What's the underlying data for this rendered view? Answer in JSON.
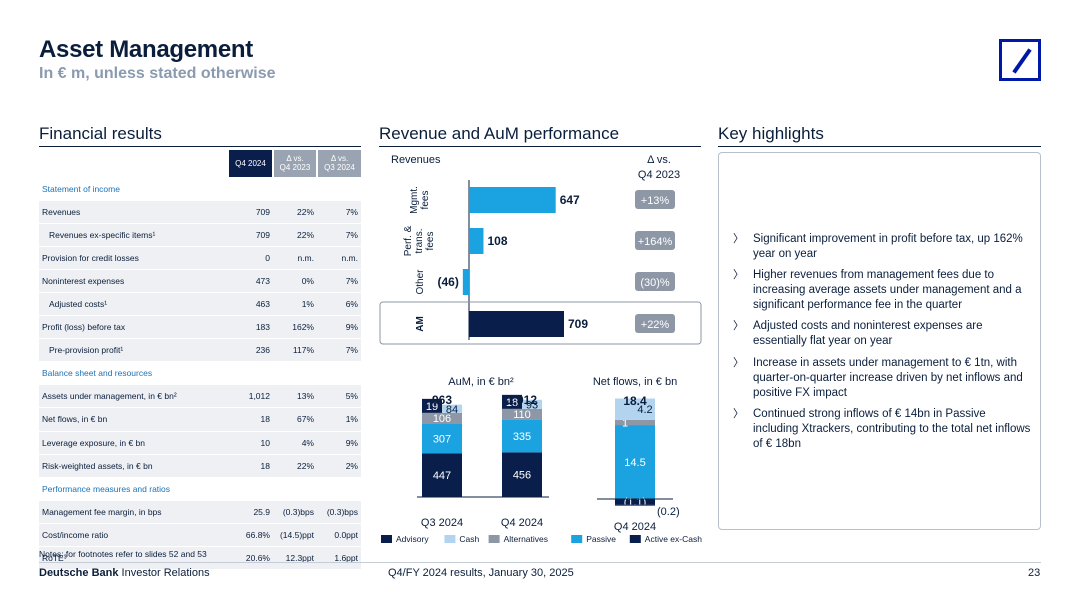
{
  "header": {
    "title": "Asset Management",
    "subtitle": "In € m, unless stated otherwise"
  },
  "sections": {
    "financial": "Financial results",
    "revenue": "Revenue and AuM performance",
    "highlights": "Key highlights"
  },
  "table": {
    "columns": [
      "Q4 2024",
      "Δ vs.\nQ4 2023",
      "Δ vs.\nQ3 2024"
    ],
    "rows": [
      {
        "type": "section",
        "label": "Statement of income"
      },
      {
        "type": "row",
        "label": "Revenues",
        "values": [
          "709",
          "22%",
          "7%"
        ]
      },
      {
        "type": "row",
        "label": "Revenues ex-specific items¹",
        "indent": true,
        "values": [
          "709",
          "22%",
          "7%"
        ]
      },
      {
        "type": "row",
        "label": "Provision for credit losses",
        "values": [
          "0",
          "n.m.",
          "n.m."
        ]
      },
      {
        "type": "row",
        "label": "Noninterest expenses",
        "values": [
          "473",
          "0%",
          "7%"
        ]
      },
      {
        "type": "row",
        "label": "Adjusted costs¹",
        "indent": true,
        "values": [
          "463",
          "1%",
          "6%"
        ]
      },
      {
        "type": "row",
        "label": "Profit (loss) before tax",
        "values": [
          "183",
          "162%",
          "9%"
        ]
      },
      {
        "type": "row",
        "label": "Pre-provision profit¹",
        "indent": true,
        "values": [
          "236",
          "117%",
          "7%"
        ]
      },
      {
        "type": "section",
        "label": "Balance sheet and resources"
      },
      {
        "type": "row",
        "label": "Assets under management, in € bn²",
        "values": [
          "1,012",
          "13%",
          "5%"
        ]
      },
      {
        "type": "row",
        "label": "Net flows, in € bn",
        "values": [
          "18",
          "67%",
          "1%"
        ]
      },
      {
        "type": "row",
        "label": "Leverage exposure, in € bn",
        "values": [
          "10",
          "4%",
          "9%"
        ]
      },
      {
        "type": "row",
        "label": "Risk-weighted assets, in € bn",
        "values": [
          "18",
          "22%",
          "2%"
        ]
      },
      {
        "type": "section",
        "label": "Performance measures and ratios"
      },
      {
        "type": "row",
        "label": "Management fee margin, in bps",
        "values": [
          "25.9",
          "(0.3)bps",
          "(0.3)bps"
        ]
      },
      {
        "type": "row",
        "label": "Cost/income ratio",
        "values": [
          "66.8%",
          "(14.5)ppt",
          "0.0ppt"
        ]
      },
      {
        "type": "row",
        "label": "RoTE³",
        "values": [
          "20.6%",
          "12.3ppt",
          "1.6ppt"
        ]
      }
    ]
  },
  "notes": "Notes: for footnotes refer to slides 52 and 53",
  "revenue_chart": {
    "revenues_label": "Revenues",
    "delta_header": "Δ vs.\nQ4 2023",
    "rows": [
      {
        "label": "Mgmt.\nfees",
        "value": 647,
        "value_text": "647",
        "delta": "+13%"
      },
      {
        "label": "Perf. &\ntrans.\nfees",
        "value": 108,
        "value_text": "108",
        "delta": "+164%"
      },
      {
        "label": "Other",
        "value": -46,
        "value_text": "(46)",
        "delta": "(30)%"
      },
      {
        "label": "AM",
        "value": 709,
        "value_text": "709",
        "delta": "+22%"
      }
    ]
  },
  "chart_data": [
    {
      "type": "bar",
      "title": "AuM, in € bn²",
      "categories": [
        "Q3 2024",
        "Q4 2024"
      ],
      "totals": [
        "963",
        "1,012"
      ],
      "series": [
        {
          "name": "Active ex-Cash",
          "values": [
            447,
            456
          ]
        },
        {
          "name": "Passive",
          "values": [
            307,
            335
          ]
        },
        {
          "name": "Alternatives",
          "values": [
            106,
            110
          ]
        },
        {
          "name": "Cash",
          "values": [
            84,
            93
          ]
        },
        {
          "name": "Advisory",
          "values": [
            19,
            18
          ]
        }
      ]
    },
    {
      "type": "bar",
      "title": "Net flows, in € bn",
      "categories": [
        "Q4 2024"
      ],
      "totals": [
        "18.4"
      ],
      "series": [
        {
          "name": "Passive",
          "values": [
            14.5
          ]
        },
        {
          "name": "Alternatives",
          "values": [
            1.0
          ]
        },
        {
          "name": "Cash",
          "values": [
            4.2
          ]
        },
        {
          "name": "Active ex-Cash",
          "values": [
            -1.1
          ]
        },
        {
          "name": "Advisory",
          "values": [
            -0.2
          ]
        }
      ]
    }
  ],
  "legend": [
    {
      "name": "Advisory",
      "color": "#0a1e4b"
    },
    {
      "name": "Cash",
      "color": "#b3d4ee"
    },
    {
      "name": "Alternatives",
      "color": "#8d97a6"
    },
    {
      "name": "Passive",
      "color": "#1ba3e1"
    },
    {
      "name": "Active ex-Cash",
      "color": "#0a1e4b"
    }
  ],
  "colors": {
    "navy": "#0a1e4b",
    "passive": "#1ba3e1",
    "cash": "#b3d4ee",
    "alternatives": "#8d97a6",
    "revenue_bar": "#1ba3e1"
  },
  "highlights": [
    "Significant improvement in profit before tax, up 162% year on year",
    "Higher revenues from management fees due to increasing average assets under management and a significant performance fee in the quarter",
    "Adjusted costs and noninterest expenses are essentially flat year on year",
    "Increase in assets under management to € 1tn, with quarter-on-quarter increase driven by net inflows and positive FX impact",
    "Continued strong inflows of € 14bn in Passive including Xtrackers, contributing to the total net inflows of € 18bn"
  ],
  "footer": {
    "brand_bold": "Deutsche Bank",
    "brand_rest": " Investor Relations",
    "center": "Q4/FY 2024 results, January 30, 2025",
    "page": "23"
  }
}
